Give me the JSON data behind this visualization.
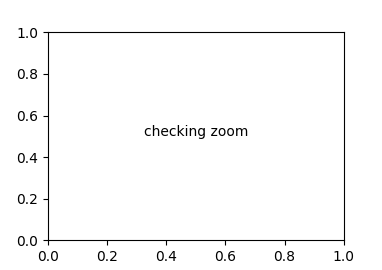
{
  "background_color": "#ffffff",
  "line_color": "#000000",
  "line_width": 1.5,
  "font_size": 9,
  "figsize": [
    3.82,
    2.7
  ],
  "dpi": 100
}
